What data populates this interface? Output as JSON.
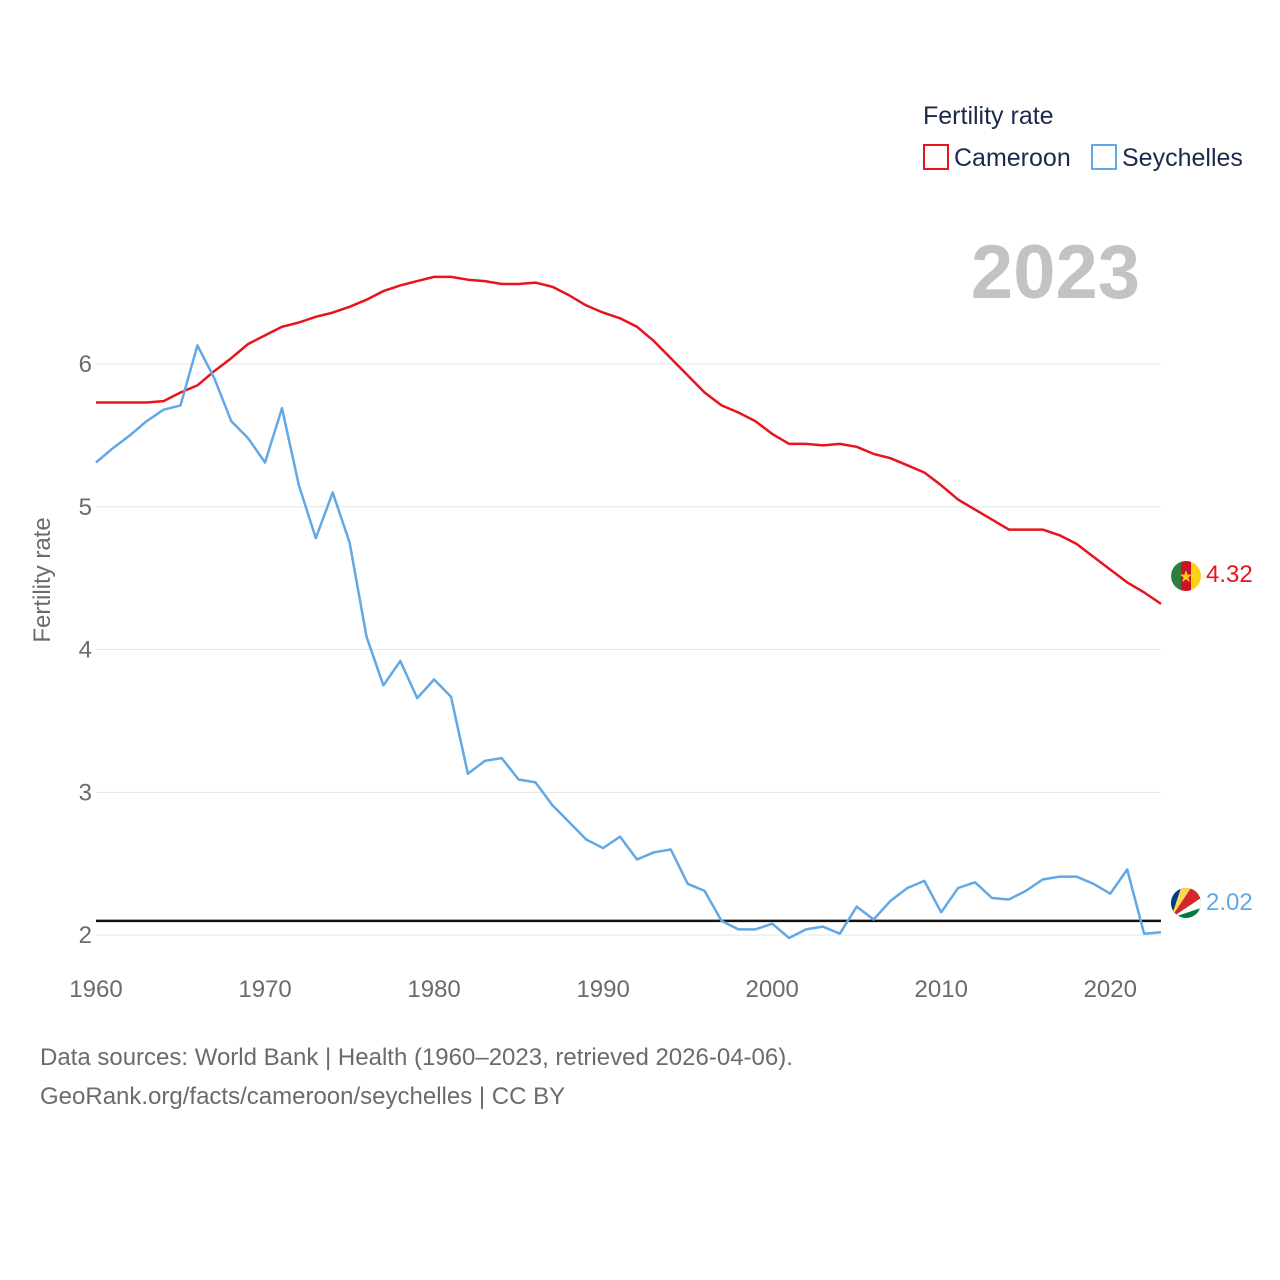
{
  "chart_data": {
    "type": "line",
    "legend_title": "Fertility rate",
    "legend_position": "top-right",
    "ylabel": "Fertility rate",
    "year_label": "2023",
    "xlim": [
      1960,
      2023
    ],
    "ylim": [
      1.7,
      6.7
    ],
    "x_ticks": [
      1960,
      1970,
      1980,
      1990,
      2000,
      2010,
      2020
    ],
    "y_ticks": [
      2,
      3,
      4,
      5,
      6
    ],
    "reference_line": 2.1,
    "years": [
      1960,
      1961,
      1962,
      1963,
      1964,
      1965,
      1966,
      1967,
      1968,
      1969,
      1970,
      1971,
      1972,
      1973,
      1974,
      1975,
      1976,
      1977,
      1978,
      1979,
      1980,
      1981,
      1982,
      1983,
      1984,
      1985,
      1986,
      1987,
      1988,
      1989,
      1990,
      1991,
      1992,
      1993,
      1994,
      1995,
      1996,
      1997,
      1998,
      1999,
      2000,
      2001,
      2002,
      2003,
      2004,
      2005,
      2006,
      2007,
      2008,
      2009,
      2010,
      2011,
      2012,
      2013,
      2014,
      2015,
      2016,
      2017,
      2018,
      2019,
      2020,
      2021,
      2022,
      2023
    ],
    "series": [
      {
        "name": "Cameroon",
        "color": "#e8141b",
        "end_label": "4.32",
        "values": [
          5.73,
          5.73,
          5.73,
          5.73,
          5.74,
          5.8,
          5.85,
          5.95,
          6.04,
          6.14,
          6.2,
          6.26,
          6.29,
          6.33,
          6.36,
          6.4,
          6.45,
          6.51,
          6.55,
          6.58,
          6.61,
          6.61,
          6.59,
          6.58,
          6.56,
          6.56,
          6.57,
          6.54,
          6.48,
          6.41,
          6.36,
          6.32,
          6.26,
          6.16,
          6.04,
          5.92,
          5.8,
          5.71,
          5.66,
          5.6,
          5.51,
          5.44,
          5.44,
          5.43,
          5.44,
          5.42,
          5.37,
          5.34,
          5.29,
          5.24,
          5.15,
          5.05,
          4.98,
          4.91,
          4.84,
          4.84,
          4.84,
          4.8,
          4.74,
          4.65,
          4.56,
          4.47,
          4.4,
          4.32
        ]
      },
      {
        "name": "Seychelles",
        "color": "#62a8e5",
        "end_label": "2.02",
        "values": [
          5.31,
          5.41,
          5.5,
          5.6,
          5.68,
          5.71,
          6.13,
          5.9,
          5.6,
          5.48,
          5.31,
          5.69,
          5.15,
          4.78,
          5.1,
          4.75,
          4.09,
          3.75,
          3.92,
          3.66,
          3.79,
          3.67,
          3.13,
          3.22,
          3.24,
          3.09,
          3.07,
          2.91,
          2.79,
          2.67,
          2.61,
          2.69,
          2.53,
          2.58,
          2.6,
          2.36,
          2.31,
          2.1,
          2.04,
          2.04,
          2.08,
          1.98,
          2.04,
          2.06,
          2.01,
          2.2,
          2.11,
          2.24,
          2.33,
          2.38,
          2.16,
          2.33,
          2.37,
          2.26,
          2.25,
          2.31,
          2.39,
          2.41,
          2.41,
          2.36,
          2.29,
          2.46,
          2.01,
          2.02
        ]
      }
    ]
  },
  "footer": {
    "source_line1": "Data sources: World Bank | Health (1960–2023, retrieved 2026-04-06).",
    "source_line2": "GeoRank.org/facts/cameroon/seychelles | CC BY"
  }
}
